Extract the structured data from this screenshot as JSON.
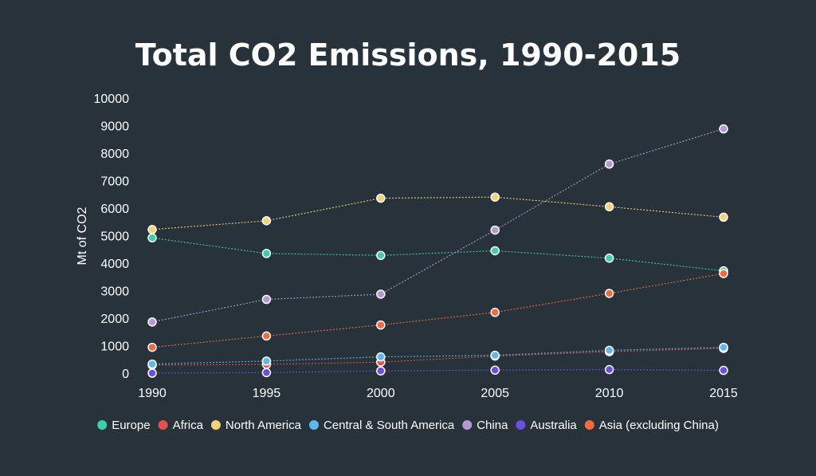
{
  "chart_data": {
    "type": "line",
    "title": "Total CO2 Emissions, 1990-2015",
    "xlabel": "",
    "ylabel": "Mt of CO2",
    "x": [
      "1990",
      "1995",
      "2000",
      "2005",
      "2010",
      "2015"
    ],
    "yticks": [
      "0",
      "1000",
      "2000",
      "3000",
      "4000",
      "5000",
      "6000",
      "7000",
      "8000",
      "9000",
      "10000"
    ],
    "ylim": [
      0,
      10000
    ],
    "grid": false,
    "legend_position": "bottom",
    "series": [
      {
        "name": "Europe",
        "color": "#3ecfa6",
        "values": [
          4920,
          4350,
          4280,
          4450,
          4180,
          3720
        ]
      },
      {
        "name": "Africa",
        "color": "#e0524f",
        "values": [
          290,
          320,
          400,
          620,
          780,
          900
        ]
      },
      {
        "name": "North America",
        "color": "#f2d27b",
        "values": [
          5220,
          5540,
          6360,
          6400,
          6050,
          5670
        ]
      },
      {
        "name": "Central & South America",
        "color": "#5fb7ea",
        "values": [
          330,
          440,
          590,
          650,
          830,
          940
        ]
      },
      {
        "name": "China",
        "color": "#b49ad4",
        "values": [
          1860,
          2680,
          2870,
          5200,
          7600,
          8880
        ]
      },
      {
        "name": "Australia",
        "color": "#6b4fe0",
        "values": [
          0,
          20,
          80,
          110,
          130,
          100
        ]
      },
      {
        "name": "Asia (excluding China)",
        "color": "#f06a42",
        "values": [
          940,
          1350,
          1750,
          2210,
          2900,
          3620
        ]
      }
    ]
  }
}
